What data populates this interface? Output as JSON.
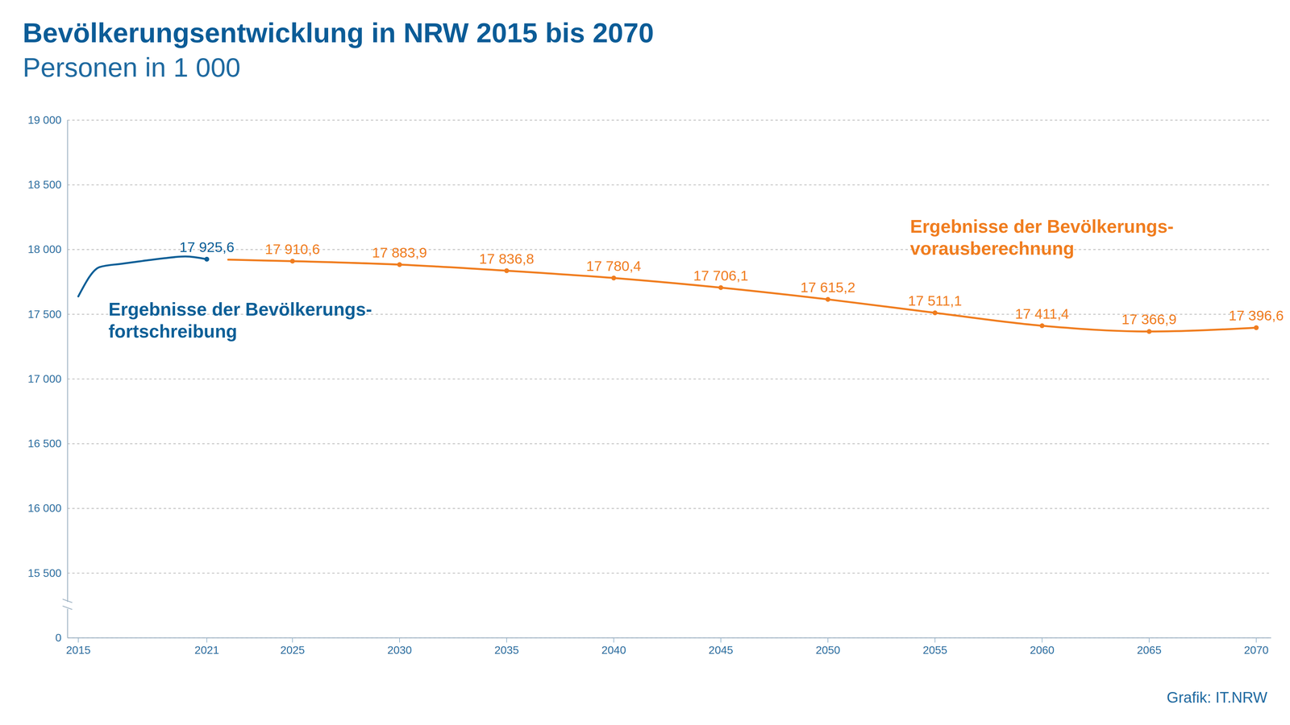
{
  "chart_data": {
    "type": "line",
    "title": "Bevölkerungsentwicklung in NRW 2015 bis 2070",
    "subtitle": "Personen in 1 000",
    "caption": "Grafik: IT.NRW",
    "xlim": [
      2014.5,
      2070.7
    ],
    "xticks": [
      2015,
      2021,
      2025,
      2030,
      2035,
      2040,
      2045,
      2050,
      2055,
      2060,
      2065,
      2070
    ],
    "ylim": [
      0,
      19000
    ],
    "yticks": [
      0,
      {
        "value": 15500,
        "label": "15 500"
      },
      {
        "value": 16000,
        "label": "16 000"
      },
      {
        "value": 16500,
        "label": "16 500"
      },
      {
        "value": 17000,
        "label": "17 000"
      },
      {
        "value": 17500,
        "label": "17 500"
      },
      {
        "value": 18000,
        "label": "18 000"
      },
      {
        "value": 18500,
        "label": "18 500"
      },
      {
        "value": 19000,
        "label": "19 000"
      }
    ],
    "grid": true,
    "data_labels": true,
    "series": [
      {
        "name": "Ergebnisse der Bevölkerungs-\nfortschreibung",
        "color": "#0c5f97",
        "marker": "circle",
        "line_style": "solid",
        "x": [
          2015,
          2016,
          2017,
          2018,
          2019,
          2020,
          2021
        ],
        "values": [
          17638,
          17865,
          17890,
          17912,
          17933,
          17947,
          17925.6
        ],
        "value_labels": [
          null,
          null,
          null,
          null,
          null,
          null,
          "17 925,6"
        ]
      },
      {
        "name": "Ergebnisse der Bevölkerungs-\nvorausberechnung",
        "color": "#f07d1f",
        "marker": "circle",
        "line_style": "solid",
        "x": [
          2022,
          2025,
          2030,
          2035,
          2040,
          2045,
          2050,
          2055,
          2060,
          2065,
          2070
        ],
        "values": [
          17922,
          17910.6,
          17883.9,
          17836.8,
          17780.4,
          17706.1,
          17615.2,
          17511.1,
          17411.4,
          17366.9,
          17396.6
        ],
        "value_labels": [
          null,
          "17 910,6",
          "17 883,9",
          "17 836,8",
          "17 780,4",
          "17 706,1",
          "17 615,2",
          "17 511,1",
          "17 411,4",
          "17 366,9",
          "17 396,6"
        ]
      }
    ]
  }
}
